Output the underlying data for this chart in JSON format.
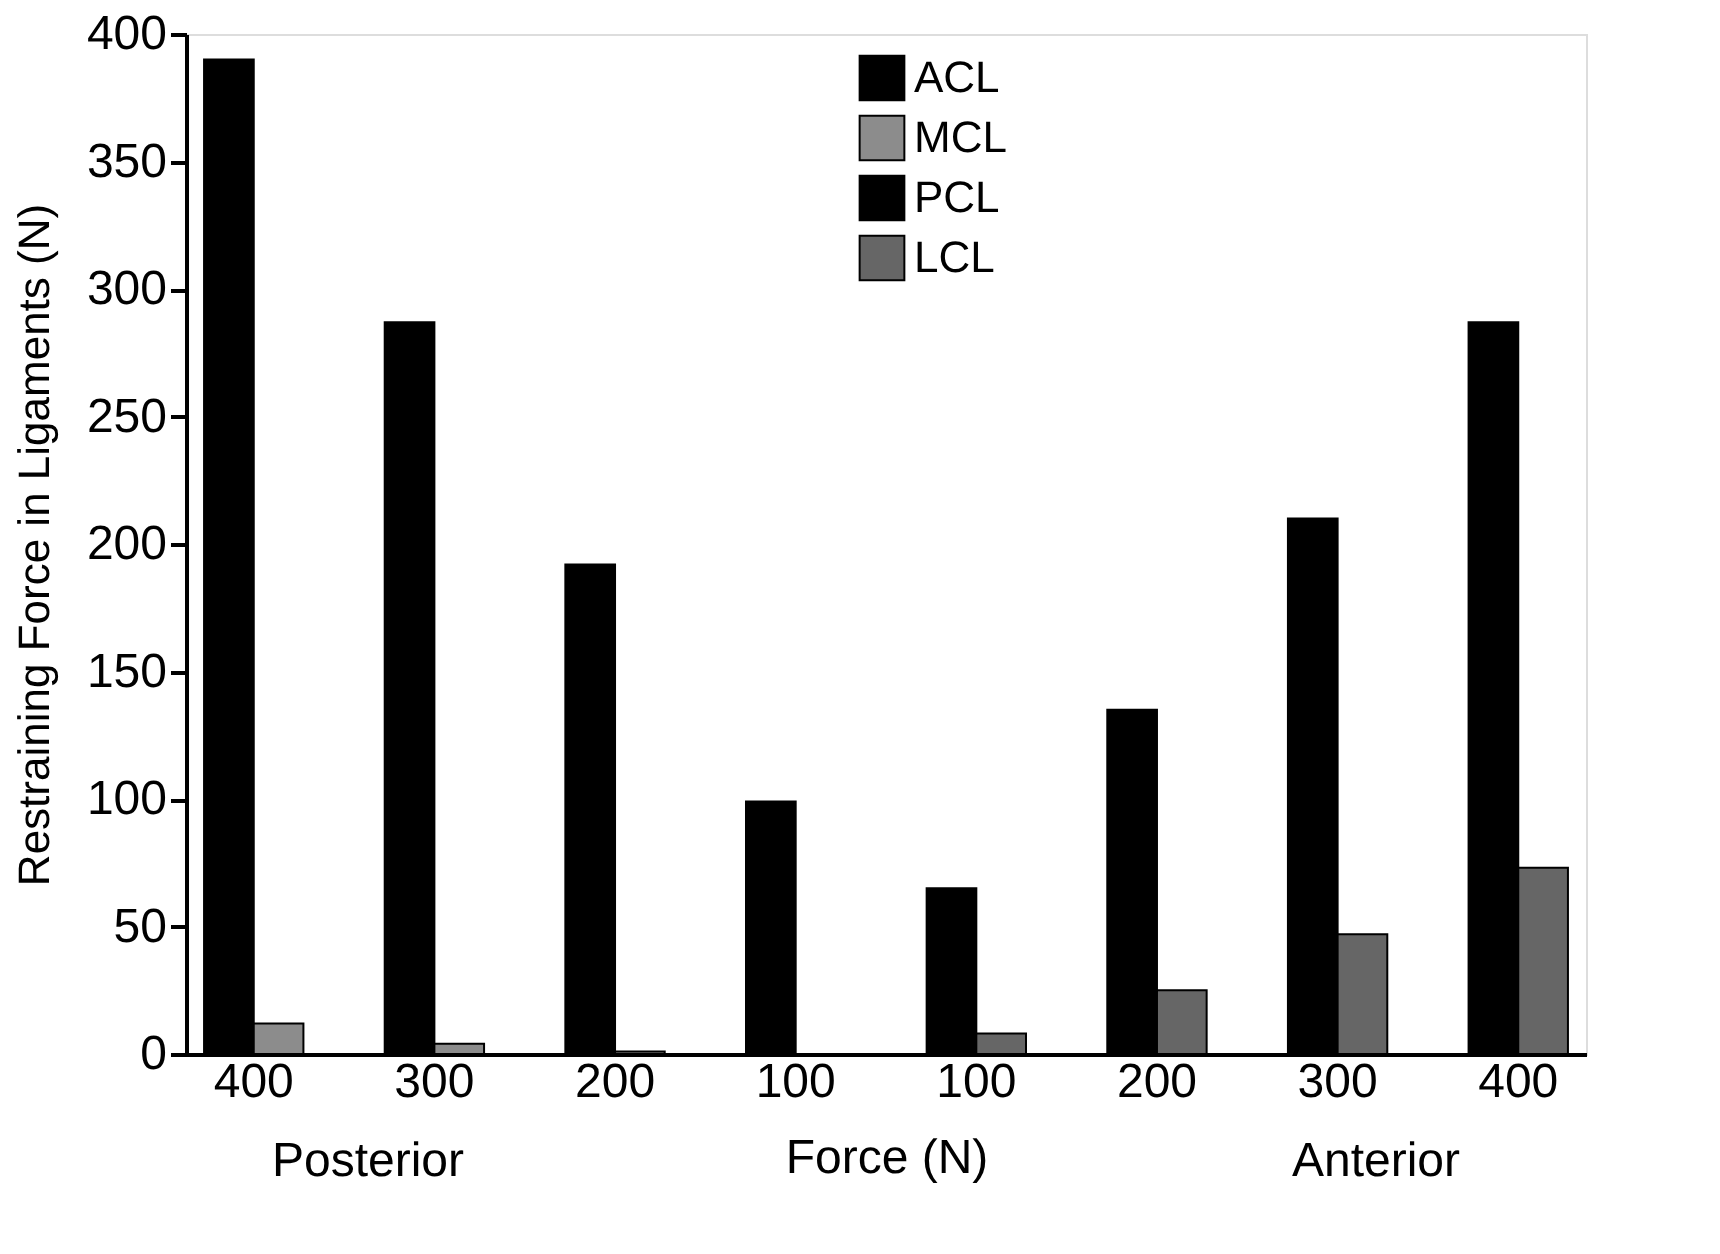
{
  "chart_data": {
    "type": "bar",
    "xlabel": "Force (N)",
    "ylabel": "Restraining Force in Ligaments (N)",
    "categories": [
      "400",
      "300",
      "200",
      "100",
      "100",
      "200",
      "300",
      "400"
    ],
    "series": [
      {
        "name": "ACL",
        "color": "#000000",
        "values": [
          null,
          null,
          null,
          null,
          65,
          135,
          210,
          287
        ]
      },
      {
        "name": "MCL",
        "color": "#8c8c8c",
        "values": [
          12,
          4,
          1,
          null,
          null,
          null,
          null,
          null
        ]
      },
      {
        "name": "PCL",
        "color": "#000000",
        "values": [
          390,
          287,
          192,
          99,
          null,
          null,
          null,
          null
        ]
      },
      {
        "name": "LCL",
        "color": "#666666",
        "values": [
          null,
          null,
          null,
          null,
          8,
          25,
          47,
          73
        ]
      }
    ],
    "annotations": [
      "Posterior",
      "Anterior"
    ],
    "ylim": [
      0,
      400
    ],
    "yticks": [
      0,
      50,
      100,
      150,
      200,
      250,
      300,
      350,
      400
    ],
    "grid": false,
    "legend": "top"
  }
}
